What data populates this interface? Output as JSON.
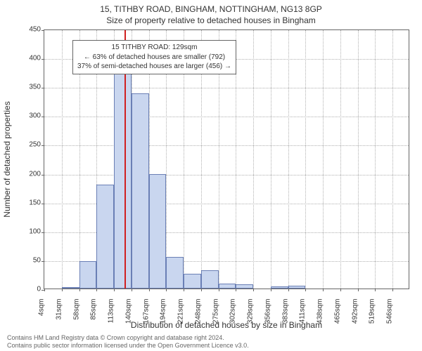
{
  "title_line1": "15, TITHBY ROAD, BINGHAM, NOTTINGHAM, NG13 8GP",
  "title_line2": "Size of property relative to detached houses in Bingham",
  "y_axis_label": "Number of detached properties",
  "x_axis_label": "Distribution of detached houses by size in Bingham",
  "footer_line1": "Contains HM Land Registry data © Crown copyright and database right 2024.",
  "footer_line2": "Contains public sector information licensed under the Open Government Licence v3.0.",
  "chart": {
    "type": "histogram",
    "ylim": [
      0,
      450
    ],
    "ytick_step": 50,
    "categories": [
      "4sqm",
      "31sqm",
      "58sqm",
      "85sqm",
      "113sqm",
      "140sqm",
      "167sqm",
      "194sqm",
      "221sqm",
      "248sqm",
      "275sqm",
      "302sqm",
      "329sqm",
      "356sqm",
      "383sqm",
      "411sqm",
      "438sqm",
      "465sqm",
      "492sqm",
      "519sqm",
      "546sqm"
    ],
    "values": [
      0,
      2,
      48,
      180,
      372,
      338,
      198,
      55,
      25,
      32,
      8,
      7,
      0,
      4,
      5,
      0,
      0,
      0,
      0,
      0,
      0
    ],
    "bar_fill": "#c9d6ef",
    "bar_border": "#6a7fb5",
    "grid_color": "#b0b0b0",
    "axis_color": "#666666",
    "background": "#ffffff",
    "marker_index": 4.6,
    "marker_color": "#d02020",
    "annotation": {
      "line1": "15 TITHBY ROAD: 129sqm",
      "line2": "← 63% of detached houses are smaller (792)",
      "line3": "37% of semi-detached houses are larger (456) →"
    },
    "title_fontsize": 12,
    "label_fontsize": 12,
    "tick_fontsize": 10
  }
}
